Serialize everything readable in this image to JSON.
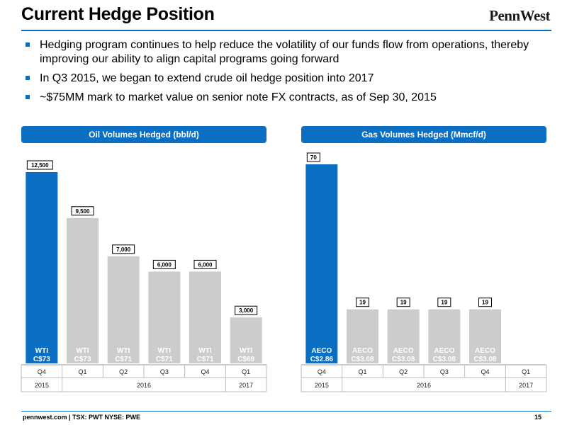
{
  "header": {
    "title": "Current Hedge Position",
    "logo": "PennWest"
  },
  "bullets": [
    "Hedging program continues to help reduce the volatility of our funds flow from operations, thereby improving our ability to align capital programs going forward",
    "In Q3 2015, we began to extend crude oil hedge position into 2017",
    "~$75MM mark to market value on senior note FX contracts, as of Sep 30, 2015"
  ],
  "colors": {
    "accent": "#0a6fc2",
    "bar_highlight": "#0a6fc2",
    "bar_gray": "#cccccc"
  },
  "chart_data": [
    {
      "type": "bar",
      "title": "Oil Volumes Hedged (bbl/d)",
      "categories": [
        "Q4",
        "Q1",
        "Q2",
        "Q3",
        "Q4",
        "Q1"
      ],
      "years": [
        {
          "label": "2015",
          "span": 1
        },
        {
          "label": "2016",
          "span": 4
        },
        {
          "label": "2017",
          "span": 1
        }
      ],
      "values": [
        12500,
        9500,
        7000,
        6000,
        6000,
        3000
      ],
      "value_labels": [
        "12,500",
        "9,500",
        "7,000",
        "6,000",
        "6,000",
        "3,000"
      ],
      "bar_labels": [
        [
          "WTI",
          "C$73"
        ],
        [
          "WTI",
          "C$73"
        ],
        [
          "WTI",
          "C$71"
        ],
        [
          "WTI",
          "C$71"
        ],
        [
          "WTI",
          "C$71"
        ],
        [
          "WTI",
          "C$69"
        ]
      ],
      "highlight_index": 0,
      "ylim": [
        0,
        15000
      ],
      "legend": "none",
      "grid": false
    },
    {
      "type": "bar",
      "title": "Gas Volumes Hedged (Mmcf/d)",
      "categories": [
        "Q4",
        "Q1",
        "Q2",
        "Q3",
        "Q4",
        "Q1"
      ],
      "years": [
        {
          "label": "2015",
          "span": 1
        },
        {
          "label": "2016",
          "span": 4
        },
        {
          "label": "2017",
          "span": 1
        }
      ],
      "values": [
        70,
        19,
        19,
        19,
        19,
        null
      ],
      "value_labels": [
        "70",
        "19",
        "19",
        "19",
        "19",
        ""
      ],
      "bar_labels": [
        [
          "AECO",
          "C$2.86"
        ],
        [
          "AECO",
          "C$3.08"
        ],
        [
          "AECO",
          "C$3.08"
        ],
        [
          "AECO",
          "C$3.08"
        ],
        [
          "AECO",
          "C$3.08"
        ],
        [
          "",
          ""
        ]
      ],
      "highlight_index": 0,
      "ylim": [
        0,
        78
      ],
      "legend": "none",
      "grid": false
    }
  ],
  "footer": {
    "site": "pennwest.com | TSX: PWT  NYSE: PWE",
    "page": "15"
  }
}
